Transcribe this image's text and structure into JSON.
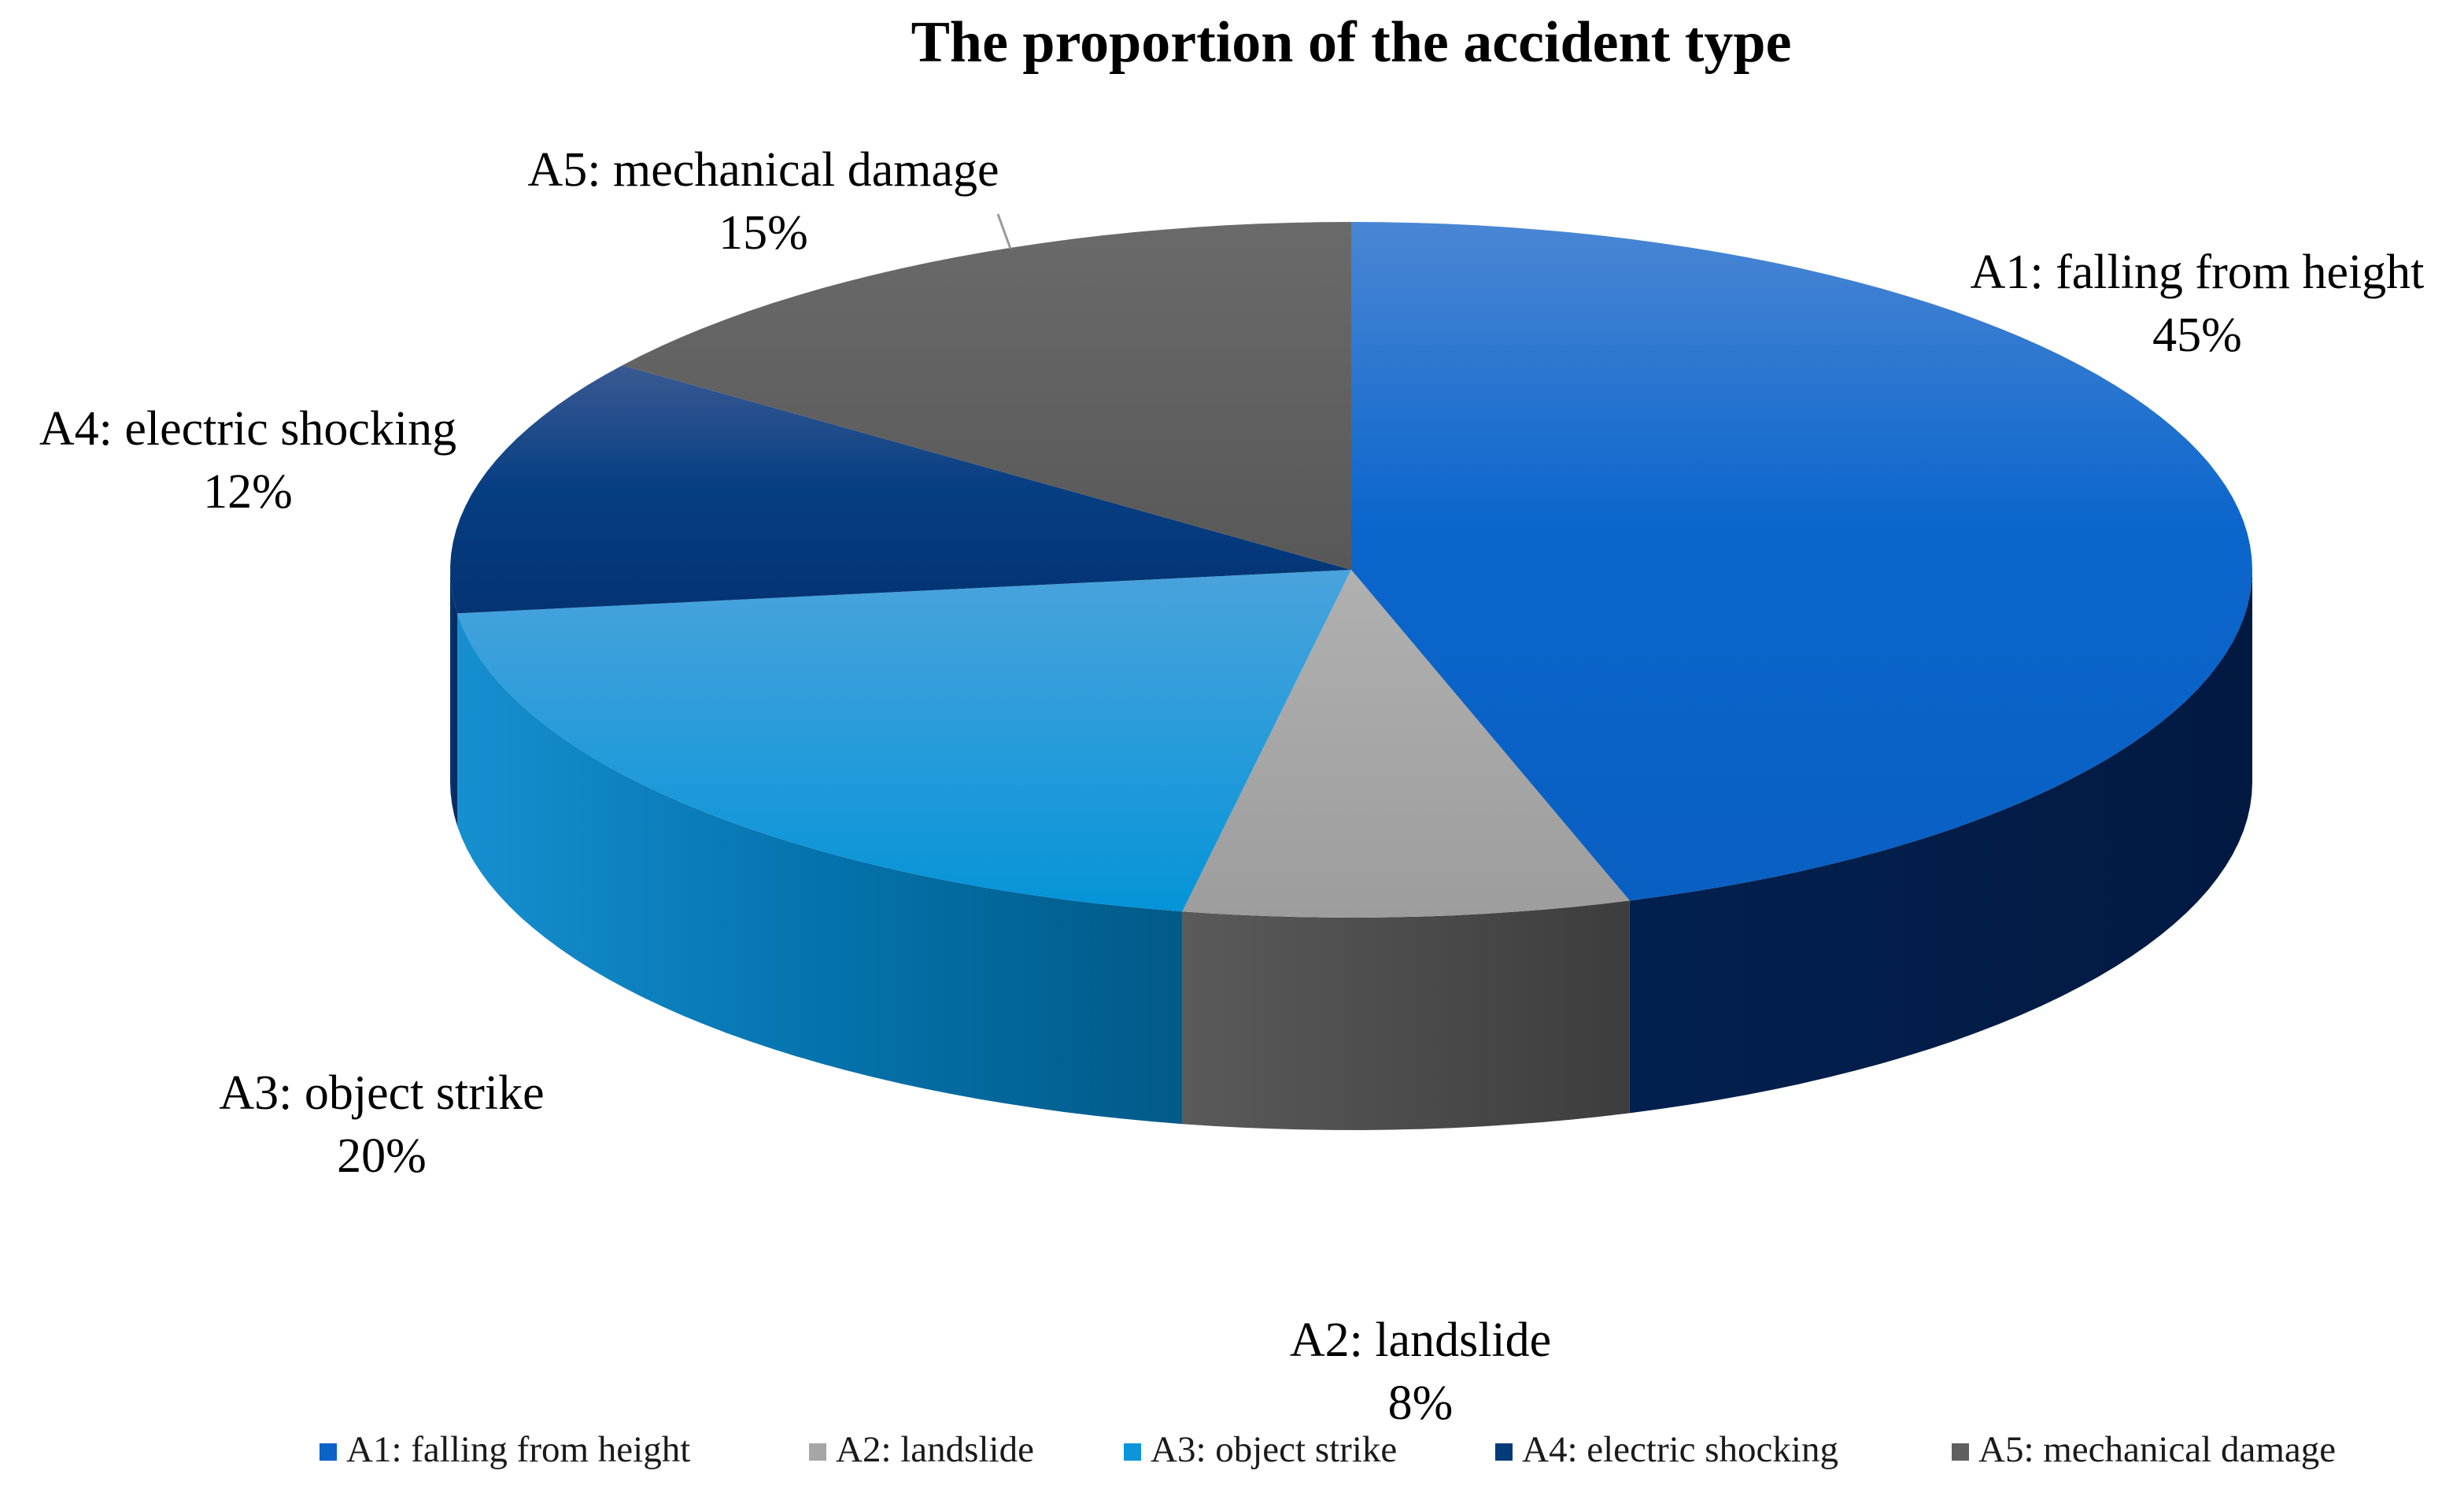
{
  "chart_data": {
    "type": "pie",
    "style": "3d",
    "title": "The proportion of the accident type",
    "legend_position": "bottom",
    "slices": [
      {
        "label": "A1: falling from height",
        "percent_label": "45%",
        "value": 45,
        "color": "#0a63c9"
      },
      {
        "label": "A2: landslide",
        "percent_label": "8%",
        "value": 8,
        "color": "#a6a6a6"
      },
      {
        "label": "A3: object strike",
        "percent_label": "20%",
        "value": 20,
        "color": "#0b96dc"
      },
      {
        "label": "A4: electric shocking",
        "percent_label": "12%",
        "value": 12,
        "color": "#053b7a"
      },
      {
        "label": "A5: mechanical damage",
        "percent_label": "15%",
        "value": 15,
        "color": "#5f5f5f"
      }
    ]
  }
}
